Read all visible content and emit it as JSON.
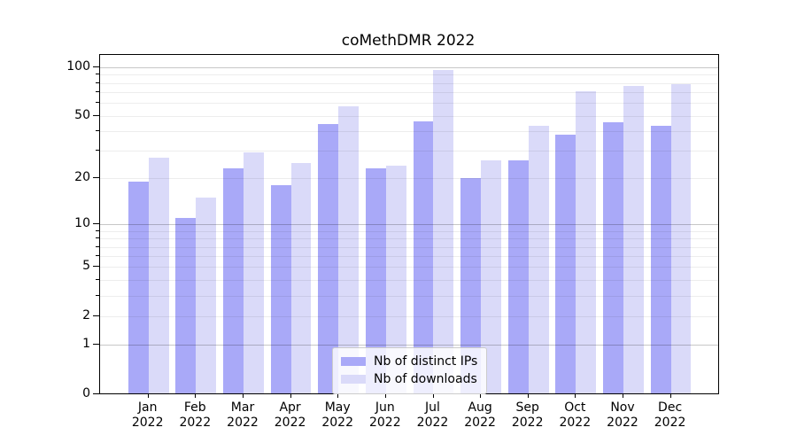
{
  "title": "coMethDMR 2022",
  "legend": {
    "items": [
      {
        "label": "Nb of distinct IPs",
        "color": "#a9a9f8"
      },
      {
        "label": "Nb of downloads",
        "color": "#dadaf9"
      }
    ],
    "position": "lower center"
  },
  "chart_data": {
    "type": "bar",
    "title": "coMethDMR 2022",
    "categories": [
      "Jan 2022",
      "Feb 2022",
      "Mar 2022",
      "Apr 2022",
      "May 2022",
      "Jun 2022",
      "Jul 2022",
      "Aug 2022",
      "Sep 2022",
      "Oct 2022",
      "Nov 2022",
      "Dec 2022"
    ],
    "x_months": [
      "Jan",
      "Feb",
      "Mar",
      "Apr",
      "May",
      "Jun",
      "Jul",
      "Aug",
      "Sep",
      "Oct",
      "Nov",
      "Dec"
    ],
    "x_year": "2022",
    "series": [
      {
        "name": "Nb of distinct IPs",
        "color": "#a9a9f8",
        "values": [
          19,
          11,
          23,
          18,
          44,
          23,
          46,
          20,
          26,
          38,
          45,
          43
        ]
      },
      {
        "name": "Nb of downloads",
        "color": "#dadaf9",
        "values": [
          27,
          15,
          29,
          25,
          57,
          24,
          96,
          26,
          43,
          71,
          76,
          78
        ]
      }
    ],
    "xlabel": "",
    "ylabel": "",
    "yscale": "log1p",
    "ylim": [
      0,
      121
    ],
    "yticks": [
      0,
      1,
      2,
      5,
      10,
      20,
      50,
      100
    ],
    "ytick_major_gridlines": [
      1,
      10,
      100
    ],
    "ytick_minor_gridlines": [
      2,
      3,
      4,
      5,
      6,
      7,
      8,
      9,
      20,
      30,
      40,
      50,
      60,
      70,
      80,
      90
    ],
    "grid": "horizontal",
    "legend_position": "lower center"
  }
}
